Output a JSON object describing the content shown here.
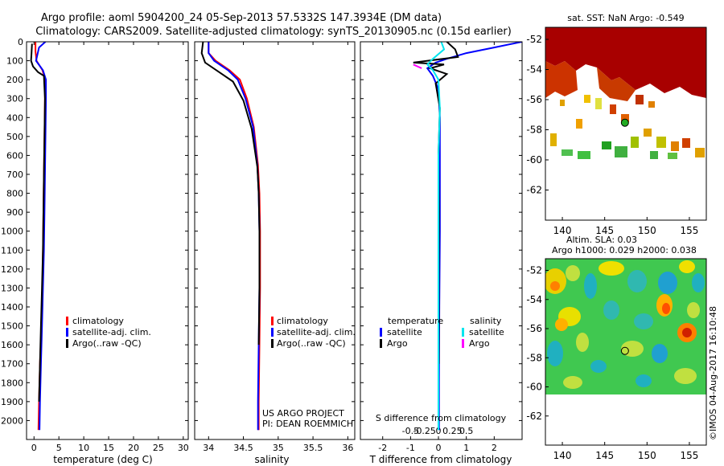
{
  "title": {
    "line1": "Argo profile: aoml 5904200_24 05-Sep-2013 57.5332S 147.3934E (DM data)",
    "line2": "Climatology: CARS2009. Satellite-adjusted climatology: synTS_20130905.nc (0.15d earlier)"
  },
  "colors": {
    "climatology": "#ff0000",
    "satellite": "#0000ff",
    "argo": "#000000",
    "sat_salinity": "#00e5ee",
    "argo_salinity": "#ff00ff"
  },
  "chart_data": [
    {
      "type": "line",
      "panel": "temperature",
      "xlabel": "temperature (deg C)",
      "ylabel": "",
      "xlim": [
        -1.5,
        31
      ],
      "ylim": [
        2100,
        0
      ],
      "xticks": [
        0,
        5,
        10,
        15,
        20,
        25,
        30
      ],
      "yticks": [
        0,
        100,
        200,
        300,
        400,
        500,
        600,
        700,
        800,
        900,
        1000,
        1100,
        1200,
        1300,
        1400,
        1500,
        1600,
        1700,
        1800,
        1900,
        2000
      ],
      "legend": [
        "climatology",
        "satellite-adj. clim.",
        "Argo(..raw -QC)"
      ],
      "series": [
        {
          "name": "climatology",
          "color": "#ff0000",
          "x": [
            0.3,
            0.3,
            0.5,
            1.7,
            2.2,
            2.2,
            2.1,
            2.0,
            1.9,
            1.8,
            1.7,
            1.5,
            1.2,
            1.0,
            0.9
          ],
          "y": [
            0,
            50,
            100,
            150,
            200,
            300,
            500,
            700,
            900,
            1100,
            1300,
            1500,
            1700,
            1900,
            2050
          ]
        },
        {
          "name": "satellite-adj. clim.",
          "color": "#0000ff",
          "x": [
            2.3,
            1.0,
            0.4,
            1.8,
            2.4,
            2.4,
            2.3,
            2.2,
            2.1,
            2.0,
            1.8,
            1.6,
            1.4,
            1.2,
            1.1
          ],
          "y": [
            0,
            30,
            100,
            150,
            200,
            300,
            500,
            700,
            900,
            1100,
            1300,
            1500,
            1700,
            1900,
            2050
          ]
        },
        {
          "name": "Argo(..raw -QC)",
          "color": "#000000",
          "x": [
            -0.4,
            -0.5,
            -0.6,
            -0.2,
            0.8,
            2.0,
            2.2,
            2.1,
            2.0,
            1.9,
            1.8,
            1.6,
            1.4,
            1.2,
            1.0
          ],
          "y": [
            10,
            60,
            100,
            130,
            160,
            180,
            300,
            500,
            700,
            900,
            1100,
            1300,
            1500,
            1700,
            1900
          ]
        }
      ]
    },
    {
      "type": "line",
      "panel": "salinity",
      "xlabel": "salinity",
      "xlim": [
        33.8,
        36.1
      ],
      "ylim": [
        2100,
        0
      ],
      "xticks": [
        34,
        34.5,
        35,
        35.5,
        36
      ],
      "xticklabels": [
        "34",
        "34.5",
        "35",
        "35.5",
        "36"
      ],
      "legend": [
        "climatology",
        "satellite-adj. clim.",
        "Argo(..raw -QC)"
      ],
      "annotation": [
        "US ARGO PROJECT",
        "PI: DEAN ROEMMICH"
      ],
      "series": [
        {
          "name": "climatology",
          "color": "#ff0000",
          "x": [
            34.0,
            34.0,
            34.1,
            34.3,
            34.45,
            34.55,
            34.65,
            34.71,
            34.73,
            34.74,
            34.74,
            34.73,
            34.72,
            34.72
          ],
          "y": [
            0,
            60,
            100,
            150,
            200,
            300,
            450,
            650,
            800,
            1000,
            1300,
            1600,
            1900,
            2050
          ]
        },
        {
          "name": "satellite-adj. clim.",
          "color": "#0000ff",
          "x": [
            34.0,
            34.0,
            34.08,
            34.28,
            34.42,
            34.53,
            34.64,
            34.7,
            34.72,
            34.73,
            34.73,
            34.72,
            34.71,
            34.71
          ],
          "y": [
            0,
            60,
            100,
            150,
            200,
            300,
            450,
            650,
            800,
            1000,
            1300,
            1600,
            1900,
            2050
          ]
        },
        {
          "name": "Argo(..raw -QC)",
          "color": "#000000",
          "x": [
            33.92,
            33.9,
            33.95,
            34.15,
            34.35,
            34.5,
            34.62,
            34.7,
            34.72,
            34.73,
            34.73,
            34.72
          ],
          "y": [
            0,
            60,
            110,
            160,
            210,
            310,
            460,
            660,
            800,
            1000,
            1300,
            1600
          ]
        }
      ]
    },
    {
      "type": "line",
      "panel": "difference",
      "xlabel": "T difference from climatology",
      "xlabel_top": "S difference from climatology",
      "xlim": [
        -2.8,
        3.0
      ],
      "ylim": [
        2100,
        0
      ],
      "xticks": [
        -2,
        -1,
        0,
        1,
        2
      ],
      "xticklabels": [
        "-2",
        "-1",
        "0",
        "1",
        "2"
      ],
      "sticks_pos": [
        -1,
        -0.5,
        0,
        0.5,
        1
      ],
      "sticks": [
        "-0.5",
        "-0.25",
        "0",
        "0.25",
        "0.5"
      ],
      "legend": {
        "temperature": [
          "satellite",
          "Argo"
        ],
        "salinity": [
          "satellite",
          "Argo"
        ]
      },
      "legend_titles": [
        "temperature",
        "salinity"
      ],
      "series": [
        {
          "name": "temperature satellite",
          "color": "#0000ff",
          "x": [
            3.0,
            2.0,
            1.0,
            0.3,
            -0.1,
            -0.4,
            -0.2,
            0.0,
            0.05,
            0.05,
            0.05,
            0.03,
            0.02,
            0.02
          ],
          "y": [
            0,
            30,
            60,
            90,
            110,
            140,
            180,
            250,
            400,
            700,
            1000,
            1400,
            1800,
            2050
          ]
        },
        {
          "name": "temperature Argo",
          "color": "#000000",
          "x": [
            0.3,
            0.6,
            0.7,
            -0.9,
            0.2,
            -0.3,
            0.3,
            -0.1,
            0.05,
            0.0,
            0.02,
            0.01,
            0.01
          ],
          "y": [
            0,
            40,
            80,
            110,
            120,
            140,
            170,
            220,
            350,
            600,
            900,
            1300,
            1700
          ]
        },
        {
          "name": "salinity satellite",
          "color": "#00e5ee",
          "x": [
            0.1,
            0.2,
            -0.2,
            -0.4,
            -0.2,
            0.0,
            0.05,
            0.0,
            0.0,
            0.0,
            0.0
          ],
          "y": [
            0,
            40,
            90,
            120,
            150,
            200,
            350,
            600,
            1000,
            1500,
            2050
          ]
        },
        {
          "name": "salinity Argo",
          "color": "#ff00ff",
          "x": [
            -0.9,
            -0.6
          ],
          "y": [
            120,
            140
          ]
        }
      ]
    }
  ],
  "sst_map": {
    "title": "sat. SST: NaN Argo: -0.549",
    "xticks": [
      140,
      145,
      150,
      155
    ],
    "yticks": [
      -52,
      -54,
      -56,
      -58,
      -60,
      -62
    ],
    "xlim": [
      138,
      157
    ],
    "ylim": [
      -64,
      -51.2
    ],
    "argo_lon": 147.39,
    "argo_lat": -57.53
  },
  "sla_map": {
    "title1": "Altim. SLA: 0.03",
    "title2": "Argo h1000: 0.029 h2000: 0.038",
    "xticks": [
      140,
      145,
      150,
      155
    ],
    "yticks": [
      -52,
      -54,
      -56,
      -58,
      -60,
      -62
    ],
    "xlim": [
      138,
      157
    ],
    "ylim": [
      -64,
      -51.2
    ],
    "argo_lon": 147.39,
    "argo_lat": -57.53
  },
  "watermark": "©IMOS 04-Aug-2017 16:10:48"
}
